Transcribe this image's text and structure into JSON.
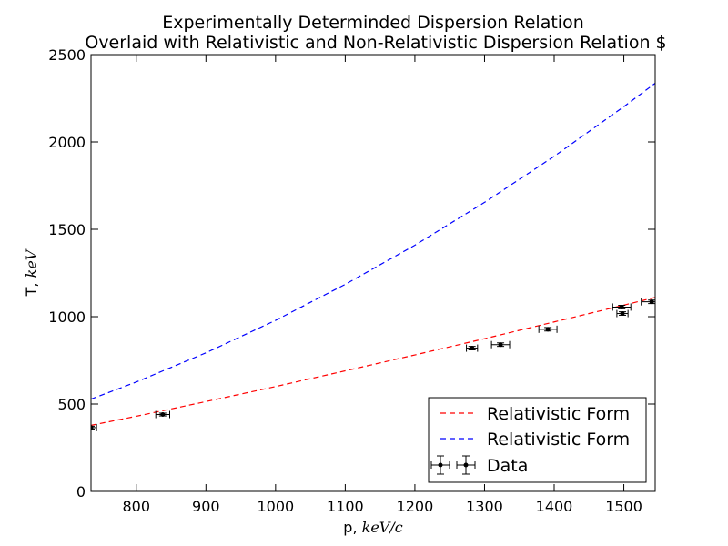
{
  "chart_data": {
    "type": "scatter",
    "title_lines": [
      "Experimentally Determinded Dispersion Relation",
      "Overlaid with Relativistic and Non-Relativistic Dispersion Relation $"
    ],
    "xlabel": {
      "text": "p, ",
      "math": "keV/c"
    },
    "ylabel": {
      "text": "T, ",
      "math": "keV"
    },
    "xlim": [
      735,
      1545
    ],
    "ylim": [
      0,
      2500
    ],
    "xticks": [
      800,
      900,
      1000,
      1100,
      1200,
      1300,
      1400,
      1500
    ],
    "yticks": [
      0,
      500,
      1000,
      1500,
      2000,
      2500
    ],
    "grid": false,
    "legend_position": "lower-right",
    "series": [
      {
        "name": "Relativistic Form",
        "kind": "line",
        "style": "dashed",
        "color": "#ff0000",
        "x": [
          735,
          800,
          900,
          1000,
          1100,
          1200,
          1300,
          1400,
          1500,
          1545
        ],
        "y": [
          378,
          430,
          514,
          600,
          690,
          781,
          874,
          970,
          1066,
          1110
        ]
      },
      {
        "name": "Relativistic Form",
        "kind": "line",
        "style": "dashed",
        "color": "#0000ff",
        "x": [
          735,
          800,
          900,
          1000,
          1100,
          1200,
          1300,
          1400,
          1500,
          1545
        ],
        "y": [
          528,
          626,
          793,
          979,
          1185,
          1409,
          1654,
          1918,
          2202,
          2336
        ]
      },
      {
        "name": "Data",
        "kind": "errorbar",
        "color": "#000000",
        "points": [
          {
            "x": 735,
            "y": 365,
            "xerr": 8,
            "yerr": 8
          },
          {
            "x": 838,
            "y": 440,
            "xerr": 10,
            "yerr": 8
          },
          {
            "x": 1282,
            "y": 820,
            "xerr": 8,
            "yerr": 10
          },
          {
            "x": 1323,
            "y": 840,
            "xerr": 13,
            "yerr": 10
          },
          {
            "x": 1391,
            "y": 928,
            "xerr": 13,
            "yerr": 10
          },
          {
            "x": 1497,
            "y": 1055,
            "xerr": 13,
            "yerr": 10
          },
          {
            "x": 1498,
            "y": 1018,
            "xerr": 8,
            "yerr": 10
          },
          {
            "x": 1540,
            "y": 1085,
            "xerr": 15,
            "yerr": 10
          }
        ]
      }
    ]
  }
}
